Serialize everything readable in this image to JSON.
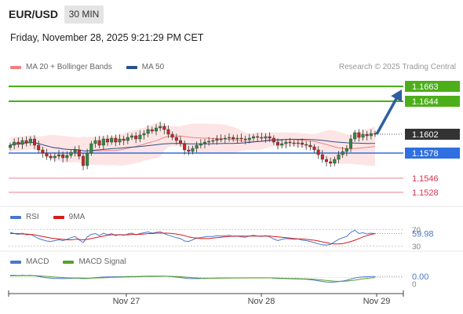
{
  "header": {
    "symbol": "EUR/USD",
    "timeframe": "30 MIN",
    "datetime": "Friday, November 28, 2025 9:21:29 PM CET"
  },
  "legend_main": [
    {
      "label": "MA 20 + Bollinger Bands",
      "color": "#f08080"
    },
    {
      "label": "MA 50",
      "color": "#2b4f8a"
    }
  ],
  "copyright": "Research © 2025 Trading Central",
  "colors": {
    "resistance": "#4caf19",
    "current": "#333333",
    "pivot": "#2f6fe0",
    "support": "#e0304a",
    "arrow": "#2f5f9f",
    "bollinger_fill": "#fde0e0",
    "candle_up": "#2e8b3d",
    "candle_down": "#c62828"
  },
  "chart_data": [
    {
      "type": "candlestick",
      "title": "EUR/USD",
      "ylim": [
        1.1515,
        1.1675
      ],
      "price_levels": [
        {
          "value": 1.1663,
          "label": "1.1663",
          "kind": "resistance"
        },
        {
          "value": 1.1644,
          "label": "1.1644",
          "kind": "resistance"
        },
        {
          "value": 1.1602,
          "label": "1.1602",
          "kind": "current"
        },
        {
          "value": 1.1578,
          "label": "1.1578",
          "kind": "pivot"
        },
        {
          "value": 1.1546,
          "label": "1.1546",
          "kind": "support"
        },
        {
          "value": 1.1528,
          "label": "1.1528",
          "kind": "support"
        }
      ],
      "x_ticks": [
        "Nov 27",
        "Nov 28",
        "Nov 29"
      ],
      "close_series": [
        1.1588,
        1.1592,
        1.1589,
        1.1594,
        1.1591,
        1.1596,
        1.1588,
        1.1582,
        1.1578,
        1.1574,
        1.1572,
        1.1574,
        1.1576,
        1.1572,
        1.1575,
        1.1579,
        1.1582,
        1.1574,
        1.1562,
        1.1578,
        1.159,
        1.1594,
        1.1588,
        1.1596,
        1.1592,
        1.1597,
        1.1592,
        1.1596,
        1.1594,
        1.1598,
        1.16,
        1.1596,
        1.1601,
        1.1603,
        1.1608,
        1.1606,
        1.161,
        1.1612,
        1.1608,
        1.1602,
        1.1598,
        1.1594,
        1.159,
        1.1582,
        1.158,
        1.1584,
        1.1588,
        1.159,
        1.1592,
        1.1593,
        1.1594,
        1.1596,
        1.1596,
        1.1597,
        1.1598,
        1.1596,
        1.1597,
        1.1596,
        1.1595,
        1.1597,
        1.1599,
        1.1598,
        1.1597,
        1.1599,
        1.1597,
        1.1592,
        1.1588,
        1.159,
        1.1592,
        1.1591,
        1.159,
        1.1591,
        1.1589,
        1.1588,
        1.1586,
        1.1582,
        1.1576,
        1.157,
        1.1567,
        1.1565,
        1.157,
        1.1576,
        1.158,
        1.1584,
        1.1596,
        1.1604,
        1.1598,
        1.1602,
        1.16,
        1.1603,
        1.1602
      ]
    },
    {
      "type": "line",
      "title": "RSI",
      "ylim": [
        25,
        80
      ],
      "y_ticks": [
        70,
        30
      ],
      "series": [
        {
          "name": "RSI",
          "color": "#4a78c8",
          "values": [
            63,
            60,
            58,
            61,
            57,
            58,
            53,
            48,
            45,
            42,
            41,
            43,
            45,
            43,
            46,
            50,
            53,
            45,
            38,
            52,
            58,
            60,
            55,
            61,
            57,
            60,
            55,
            58,
            56,
            59,
            61,
            57,
            60,
            62,
            64,
            61,
            63,
            64,
            60,
            56,
            53,
            50,
            48,
            42,
            41,
            45,
            49,
            50,
            52,
            53,
            53,
            55,
            54,
            55,
            56,
            53,
            54,
            52,
            51,
            54,
            56,
            54,
            53,
            55,
            52,
            47,
            43,
            46,
            48,
            47,
            46,
            47,
            44,
            43,
            41,
            38,
            35,
            33,
            32,
            34,
            40,
            46,
            50,
            53,
            63,
            68,
            60,
            62,
            59,
            61,
            59.98
          ]
        },
        {
          "name": "9MA",
          "color": "#d81b1b",
          "values": [
            60,
            60,
            60,
            59,
            59,
            58,
            57,
            55,
            53,
            51,
            49,
            48,
            47,
            46,
            45,
            45,
            46,
            46,
            45,
            46,
            48,
            50,
            52,
            54,
            56,
            57,
            57,
            57,
            57,
            57,
            58,
            58,
            58,
            59,
            60,
            60,
            61,
            61,
            61,
            61,
            60,
            59,
            57,
            55,
            52,
            50,
            49,
            48,
            48,
            48,
            49,
            50,
            51,
            52,
            53,
            54,
            54,
            54,
            54,
            54,
            54,
            54,
            54,
            54,
            54,
            53,
            52,
            51,
            50,
            49,
            48,
            47,
            47,
            46,
            45,
            44,
            42,
            40,
            38,
            36,
            35,
            35,
            36,
            38,
            41,
            44,
            48,
            52,
            55,
            58,
            60
          ]
        }
      ],
      "current_value": "59.98"
    },
    {
      "type": "line",
      "title": "MACD",
      "ylim": [
        -0.0012,
        0.0007
      ],
      "y_ticks": [
        0
      ],
      "series": [
        {
          "name": "MACD",
          "color": "#4a78c8",
          "values": [
            0.0002,
            0.0002,
            0.00018,
            0.0002,
            0.00019,
            0.0002,
            0.00016,
            0.0001,
            4e-05,
            -2e-05,
            -6e-05,
            -8e-05,
            -9e-05,
            -0.0001,
            -9e-05,
            -7e-05,
            -5e-05,
            -7e-05,
            -0.0001,
            -8e-05,
            -4e-05,
            0,
            2e-05,
            5e-05,
            6e-05,
            7e-05,
            7e-05,
            8e-05,
            8e-05,
            9e-05,
            0.0001,
            0.0001,
            0.00011,
            0.00012,
            0.00013,
            0.00013,
            0.00014,
            0.00014,
            0.00013,
            0.00011,
            8e-05,
            4e-05,
            0,
            -5e-05,
            -9e-05,
            -0.0001,
            -0.0001,
            -9e-05,
            -8e-05,
            -7e-05,
            -6e-05,
            -5e-05,
            -4e-05,
            -4e-05,
            -3e-05,
            -3e-05,
            -3e-05,
            -3e-05,
            -3e-05,
            -2e-05,
            -2e-05,
            -2e-05,
            -2e-05,
            -2e-05,
            -3e-05,
            -5e-05,
            -8e-05,
            -9e-05,
            -0.0001,
            -0.00011,
            -0.00012,
            -0.00013,
            -0.00014,
            -0.00016,
            -0.00019,
            -0.00024,
            -0.0003,
            -0.00036,
            -0.00041,
            -0.00043,
            -0.00042,
            -0.00038,
            -0.00032,
            -0.00025,
            -0.00014,
            -4e-05,
            2e-05,
            6e-05,
            8e-05,
            0.0001,
            0.0001
          ]
        },
        {
          "name": "MACD Signal",
          "color": "#5aa02c",
          "values": [
            0.00015,
            0.00016,
            0.00016,
            0.00017,
            0.00017,
            0.00018,
            0.00017,
            0.00016,
            0.00014,
            0.00011,
            8e-05,
            5e-05,
            2e-05,
            0,
            -2e-05,
            -3e-05,
            -4e-05,
            -4e-05,
            -5e-05,
            -6e-05,
            -5e-05,
            -4e-05,
            -3e-05,
            -2e-05,
            0,
            2e-05,
            3e-05,
            4e-05,
            5e-05,
            6e-05,
            7e-05,
            7e-05,
            8e-05,
            9e-05,
            0.0001,
            0.0001,
            0.00011,
            0.00011,
            0.00012,
            0.00012,
            0.00011,
            0.0001,
            8e-05,
            5e-05,
            2e-05,
            -1e-05,
            -3e-05,
            -5e-05,
            -6e-05,
            -6e-05,
            -6e-05,
            -6e-05,
            -5e-05,
            -5e-05,
            -5e-05,
            -4e-05,
            -4e-05,
            -4e-05,
            -4e-05,
            -3e-05,
            -3e-05,
            -3e-05,
            -3e-05,
            -3e-05,
            -3e-05,
            -4e-05,
            -5e-05,
            -6e-05,
            -7e-05,
            -8e-05,
            -9e-05,
            -0.0001,
            -0.00011,
            -0.00012,
            -0.00014,
            -0.00016,
            -0.00019,
            -0.00023,
            -0.00027,
            -0.00031,
            -0.00034,
            -0.00035,
            -0.00035,
            -0.00033,
            -0.00029,
            -0.00024,
            -0.00018,
            -0.00012,
            -7e-05,
            -3e-05,
            0
          ]
        }
      ],
      "current_value": "0.00"
    }
  ]
}
